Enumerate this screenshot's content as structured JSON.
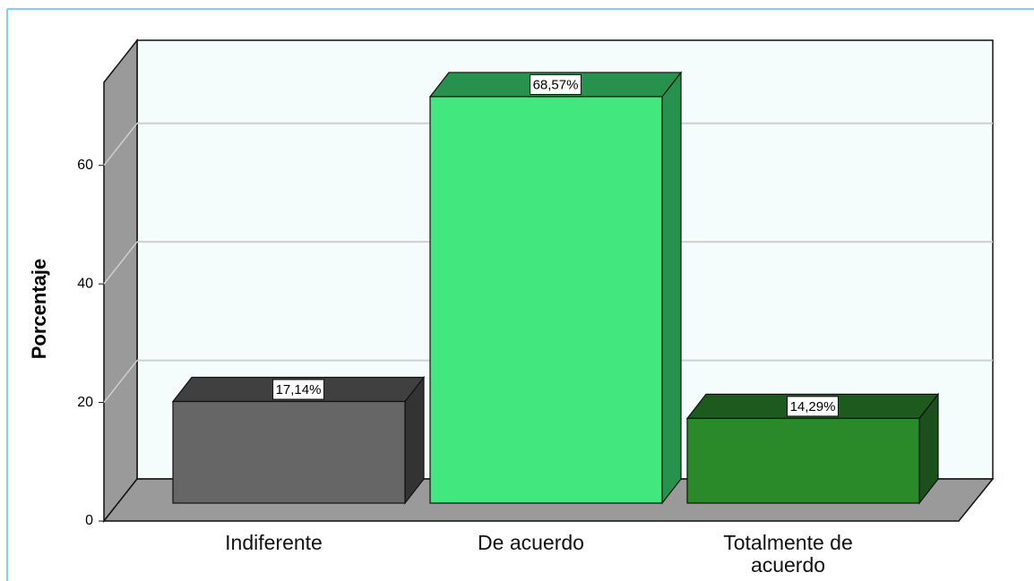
{
  "chart_data": {
    "type": "bar3d",
    "y_label": "Porcentaje",
    "categories": [
      "Indiferente",
      "De acuerdo",
      "Totalmente de acuerdo"
    ],
    "values": [
      17.14,
      68.57,
      14.29
    ],
    "value_labels": [
      "17,14%",
      "68,57%",
      "14,29%"
    ],
    "colors": [
      {
        "front": "#666666",
        "top": "#404040",
        "side": "#333333"
      },
      {
        "front": "#42e87e",
        "top": "#27914e",
        "side": "#27914e"
      },
      {
        "front": "#2a8a2a",
        "top": "#1d5a1d",
        "side": "#1b4f1b"
      }
    ],
    "ylim": [
      0,
      74
    ],
    "yticks": [
      0,
      20,
      40,
      60
    ],
    "grid": true
  }
}
